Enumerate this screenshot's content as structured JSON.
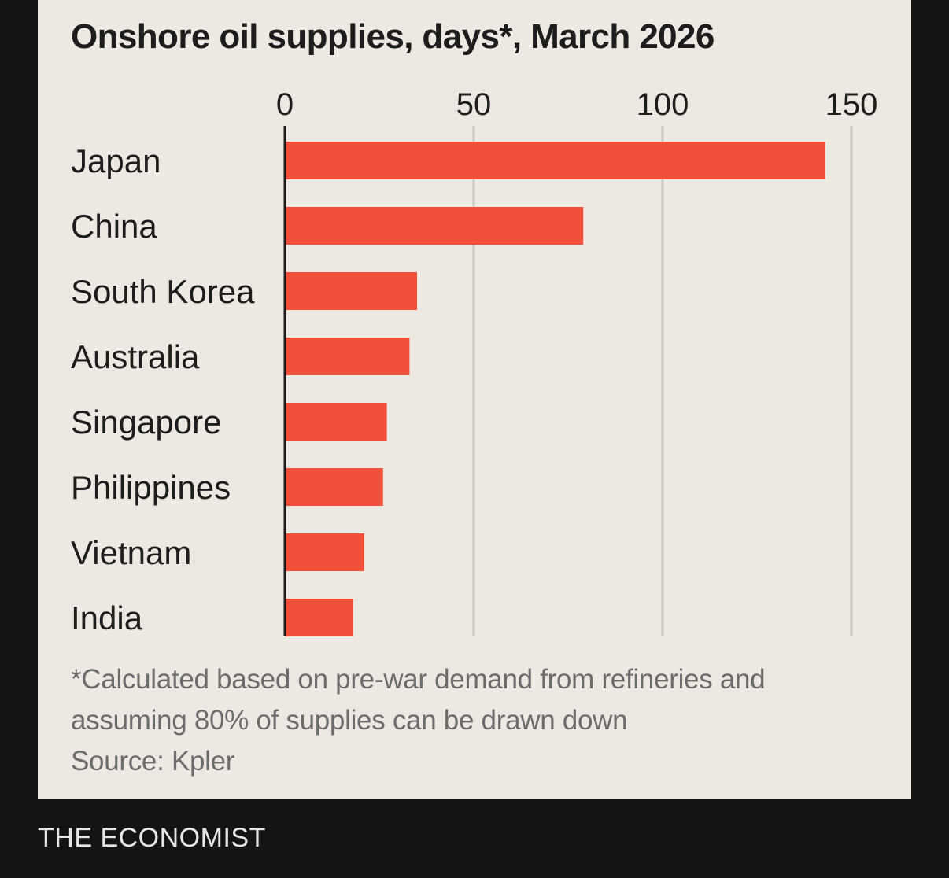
{
  "chart_data": {
    "type": "bar",
    "orientation": "horizontal",
    "title": "Onshore oil supplies, days*, March 2026",
    "categories": [
      "Japan",
      "China",
      "South Korea",
      "Australia",
      "Singapore",
      "Philippines",
      "Vietnam",
      "India"
    ],
    "values": [
      143,
      79,
      35,
      33,
      27,
      26,
      21,
      18
    ],
    "xlim": [
      0,
      150
    ],
    "xticks": [
      0,
      50,
      100,
      150
    ],
    "xaxis_position": "top",
    "grid": true,
    "bar_color": "#f05039",
    "grid_color": "#c9c7c0"
  },
  "footnote": {
    "line1": "*Calculated based on pre-war demand from refineries and",
    "line2": "assuming 80% of supplies can be drawn down",
    "source": "Source: Kpler"
  },
  "brand": "THE ECONOMIST"
}
